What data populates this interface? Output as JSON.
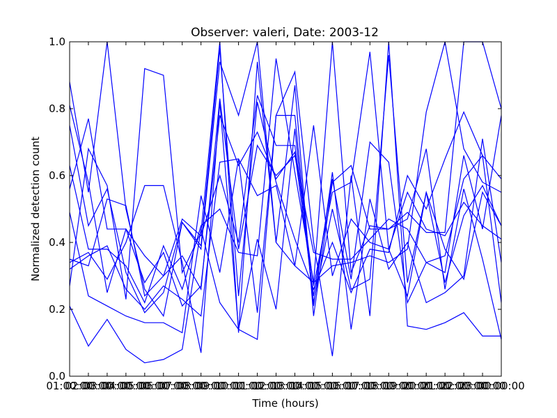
{
  "chart_data": {
    "type": "line",
    "title": "Observer: valeri, Date: 2003-12",
    "xlabel": "Time (hours)",
    "ylabel": "Normalized detection count",
    "xlim": [
      1,
      24
    ],
    "ylim": [
      0,
      1
    ],
    "grid": false,
    "x_ticks": [
      {
        "value": 1,
        "label": "01:00:00"
      },
      {
        "value": 2,
        "label": "02:00:00"
      },
      {
        "value": 3,
        "label": "03:00:00"
      },
      {
        "value": 4,
        "label": "04:00:00"
      },
      {
        "value": 5,
        "label": "05:00:00"
      },
      {
        "value": 6,
        "label": "06:00:00"
      },
      {
        "value": 7,
        "label": "07:00:00"
      },
      {
        "value": 8,
        "label": "08:00:00"
      },
      {
        "value": 9,
        "label": "09:00:00"
      },
      {
        "value": 10,
        "label": "10:00:00"
      },
      {
        "value": 11,
        "label": "11:00:00"
      },
      {
        "value": 12,
        "label": "12:00:00"
      },
      {
        "value": 13,
        "label": "13:00:00"
      },
      {
        "value": 14,
        "label": "14:00:00"
      },
      {
        "value": 15,
        "label": "15:00:00"
      },
      {
        "value": 16,
        "label": "16:00:00"
      },
      {
        "value": 17,
        "label": "17:00:00"
      },
      {
        "value": 18,
        "label": "18:00:00"
      },
      {
        "value": 19,
        "label": "19:00:00"
      },
      {
        "value": 20,
        "label": "20:00:00"
      },
      {
        "value": 21,
        "label": "21:00:00"
      },
      {
        "value": 22,
        "label": "22:00:00"
      },
      {
        "value": 23,
        "label": "23:00:00"
      },
      {
        "value": 24,
        "label": "00:00:00"
      }
    ],
    "y_ticks": [
      {
        "value": 0,
        "label": "0.0"
      },
      {
        "value": 0.2,
        "label": "0.2"
      },
      {
        "value": 0.4,
        "label": "0.4"
      },
      {
        "value": 0.6,
        "label": "0.6"
      },
      {
        "value": 0.8,
        "label": "0.8"
      },
      {
        "value": 1.0,
        "label": "1.0"
      }
    ],
    "line_color": "#0000ff",
    "x": [
      1,
      2,
      3,
      4,
      5,
      6,
      7,
      8,
      9,
      10,
      11,
      12,
      13,
      14,
      15,
      16,
      17,
      18,
      19,
      20,
      21,
      22,
      23,
      24
    ],
    "series": [
      {
        "values": [
          0.88,
          0.55,
          1.0,
          0.5,
          0.26,
          0.18,
          0.46,
          0.38,
          0.94,
          0.78,
          1.0,
          0.4,
          0.33,
          0.28,
          1.0,
          0.31,
          0.45,
          0.44,
          0.49,
          0.43,
          0.43,
          1.0,
          1.0,
          0.8
        ]
      },
      {
        "values": [
          0.35,
          0.33,
          0.53,
          0.51,
          0.24,
          0.3,
          0.36,
          0.26,
          0.83,
          0.38,
          0.69,
          0.6,
          0.66,
          0.37,
          0.35,
          0.35,
          0.41,
          0.47,
          0.44,
          0.34,
          0.36,
          0.59,
          0.66,
          0.59
        ]
      },
      {
        "values": [
          0.27,
          0.68,
          0.57,
          0.23,
          0.92,
          0.9,
          0.31,
          0.43,
          1.0,
          0.13,
          0.94,
          0.4,
          0.87,
          0.18,
          0.58,
          0.63,
          0.44,
          0.44,
          0.47,
          0.68,
          0.26,
          0.56,
          0.35,
          0.11
        ]
      },
      {
        "values": [
          0.63,
          0.38,
          0.38,
          0.33,
          0.22,
          0.39,
          0.26,
          0.45,
          0.5,
          0.37,
          0.36,
          0.95,
          0.61,
          0.28,
          0.33,
          0.34,
          0.36,
          0.34,
          0.38,
          0.79,
          1.0,
          0.68,
          0.58,
          0.55
        ]
      },
      {
        "values": [
          0.56,
          0.77,
          0.44,
          0.44,
          0.28,
          0.37,
          0.21,
          0.27,
          0.78,
          0.63,
          0.73,
          0.59,
          0.67,
          0.24,
          0.59,
          0.29,
          0.7,
          0.64,
          0.22,
          0.34,
          0.31,
          0.66,
          0.44,
          0.78
        ]
      },
      {
        "values": [
          0.21,
          0.09,
          0.17,
          0.08,
          0.04,
          0.05,
          0.08,
          0.44,
          0.22,
          0.14,
          0.11,
          0.78,
          0.91,
          0.4,
          0.06,
          0.6,
          0.18,
          1.0,
          0.15,
          0.14,
          0.16,
          0.19,
          0.12,
          0.12
        ]
      },
      {
        "values": [
          0.49,
          0.24,
          0.21,
          0.18,
          0.16,
          0.16,
          0.13,
          0.54,
          0.31,
          0.65,
          0.19,
          0.78,
          0.78,
          0.22,
          0.5,
          0.26,
          0.29,
          0.96,
          0.28,
          0.55,
          0.38,
          0.29,
          0.55,
          0.45
        ]
      },
      {
        "values": [
          0.75,
          0.45,
          0.56,
          0.31,
          0.19,
          0.25,
          0.46,
          0.39,
          0.98,
          0.24,
          0.82,
          0.58,
          0.41,
          0.26,
          0.4,
          0.25,
          0.38,
          0.37,
          0.6,
          0.5,
          0.65,
          0.79,
          0.66,
          0.22
        ]
      },
      {
        "values": [
          0.34,
          0.37,
          0.29,
          0.4,
          0.57,
          0.57,
          0.34,
          0.07,
          0.82,
          0.14,
          0.41,
          0.2,
          0.74,
          0.21,
          0.61,
          0.14,
          0.53,
          0.32,
          0.4,
          0.22,
          0.25,
          0.3,
          0.71,
          0.34
        ]
      },
      {
        "values": [
          0.32,
          0.36,
          0.39,
          0.26,
          0.2,
          0.27,
          0.23,
          0.18,
          0.64,
          0.65,
          0.54,
          0.57,
          0.33,
          0.75,
          0.3,
          0.47,
          0.4,
          0.38,
          0.55,
          0.44,
          0.42,
          0.52,
          0.45,
          0.41
        ]
      },
      {
        "values": [
          0.81,
          0.58,
          0.25,
          0.44,
          0.36,
          0.3,
          0.47,
          0.42,
          0.6,
          0.4,
          0.84,
          0.69,
          0.69,
          0.27,
          0.55,
          0.58,
          0.97,
          0.38,
          0.24,
          0.55,
          0.28,
          0.48,
          0.57,
          0.45
        ]
      }
    ]
  }
}
